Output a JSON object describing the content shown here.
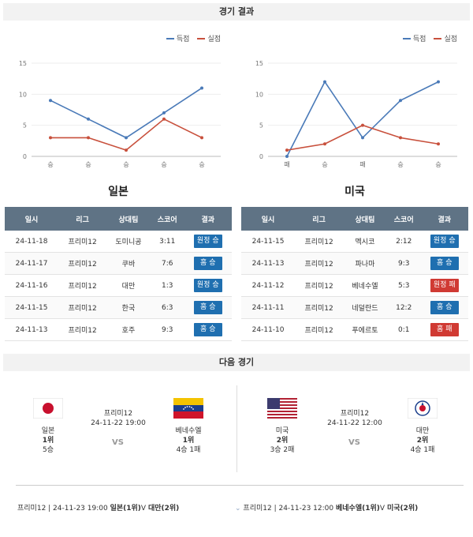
{
  "header": {
    "results_title": "경기 결과",
    "next_title": "다음 경기"
  },
  "colors": {
    "scored": "#4a7ab8",
    "conceded": "#c8503c",
    "home_win": "#1f6fb0",
    "away_win": "#1f6fb0",
    "loss": "#d03a33",
    "header_bg": "#5f7385"
  },
  "legend": {
    "scored": "득점",
    "conceded": "실점"
  },
  "chart_data": [
    {
      "type": "line",
      "categories": [
        "승",
        "승",
        "승",
        "승",
        "승"
      ],
      "ylim": [
        0,
        15
      ],
      "yticks": [
        0,
        5,
        10,
        15
      ],
      "series": [
        {
          "name": "득점",
          "values": [
            9,
            6,
            3,
            7,
            11
          ]
        },
        {
          "name": "실점",
          "values": [
            3,
            3,
            1,
            6,
            3
          ]
        }
      ]
    },
    {
      "type": "line",
      "categories": [
        "패",
        "승",
        "패",
        "승",
        "승"
      ],
      "ylim": [
        0,
        15
      ],
      "yticks": [
        0,
        5,
        10,
        15
      ],
      "series": [
        {
          "name": "득점",
          "values": [
            0,
            12,
            3,
            9,
            12
          ]
        },
        {
          "name": "실점",
          "values": [
            1,
            2,
            5,
            3,
            2
          ]
        }
      ]
    }
  ],
  "table_headers": [
    "일시",
    "리그",
    "상대팀",
    "스코어",
    "결과"
  ],
  "japan": {
    "name": "일본",
    "rows": [
      {
        "date": "24-11-18",
        "league": "프리미12",
        "opponent": "도미니공",
        "score": "3:11",
        "result": "원정 승",
        "kind": "win"
      },
      {
        "date": "24-11-17",
        "league": "프리미12",
        "opponent": "쿠바",
        "score": "7:6",
        "result": "홈 승",
        "kind": "win"
      },
      {
        "date": "24-11-16",
        "league": "프리미12",
        "opponent": "대만",
        "score": "1:3",
        "result": "원정 승",
        "kind": "win"
      },
      {
        "date": "24-11-15",
        "league": "프리미12",
        "opponent": "한국",
        "score": "6:3",
        "result": "홈 승",
        "kind": "win"
      },
      {
        "date": "24-11-13",
        "league": "프리미12",
        "opponent": "호주",
        "score": "9:3",
        "result": "홈 승",
        "kind": "win"
      }
    ]
  },
  "usa": {
    "name": "미국",
    "rows": [
      {
        "date": "24-11-15",
        "league": "프리미12",
        "opponent": "멕시코",
        "score": "2:12",
        "result": "원정 승",
        "kind": "win"
      },
      {
        "date": "24-11-13",
        "league": "프리미12",
        "opponent": "파나마",
        "score": "9:3",
        "result": "홈 승",
        "kind": "win"
      },
      {
        "date": "24-11-12",
        "league": "프리미12",
        "opponent": "베네수엘",
        "score": "5:3",
        "result": "원정 패",
        "kind": "loss"
      },
      {
        "date": "24-11-11",
        "league": "프리미12",
        "opponent": "네덜란드",
        "score": "12:2",
        "result": "홈 승",
        "kind": "win"
      },
      {
        "date": "24-11-10",
        "league": "프리미12",
        "opponent": "푸에르토",
        "score": "0:1",
        "result": "홈 패",
        "kind": "loss"
      }
    ]
  },
  "next": {
    "left": {
      "league": "프리미12",
      "datetime": "24-11-22 19:00",
      "vs": "VS",
      "home": {
        "name": "일본",
        "rank": "1위",
        "record": "5승"
      },
      "away": {
        "name": "베네수엘",
        "rank": "1위",
        "record": "4승 1패"
      }
    },
    "right": {
      "league": "프리미12",
      "datetime": "24-11-22 12:00",
      "vs": "VS",
      "home": {
        "name": "미국",
        "rank": "2위",
        "record": "3승 2패"
      },
      "away": {
        "name": "대만",
        "rank": "2위",
        "record": "4승 1패"
      }
    }
  },
  "summary": {
    "left": {
      "prefix": "프리미12 | 24-11-23 19:00",
      "teams": "일본(1위)",
      "vs": "V",
      "opp": "대만(2위)"
    },
    "right": {
      "prefix": "프리미12 | 24-11-23 12:00",
      "teams": "베네수엘(1위)",
      "vs": "V",
      "opp": "미국(2위)"
    }
  }
}
